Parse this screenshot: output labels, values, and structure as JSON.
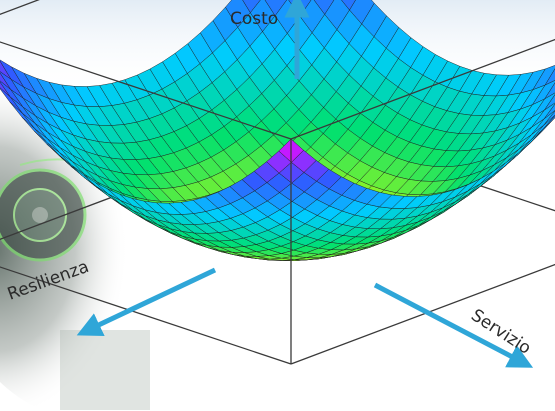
{
  "axes": {
    "vertical": {
      "label": "Costo"
    },
    "left": {
      "label": "Resilienza"
    },
    "right": {
      "label": "Servizio"
    }
  },
  "colors": {
    "axis_arrow": "#2fa6d8",
    "box_edge": "#3a3a3a",
    "mesh": "#1c1c1c",
    "label_text": "#2a2a2a",
    "background_tint": "#dfeaf4"
  },
  "surface": {
    "type": "paraboloid-grid",
    "grid_size": 27,
    "colormap": [
      "#ff00ff",
      "#3355ff",
      "#00ccff",
      "#00e070",
      "#d8ff00"
    ]
  }
}
